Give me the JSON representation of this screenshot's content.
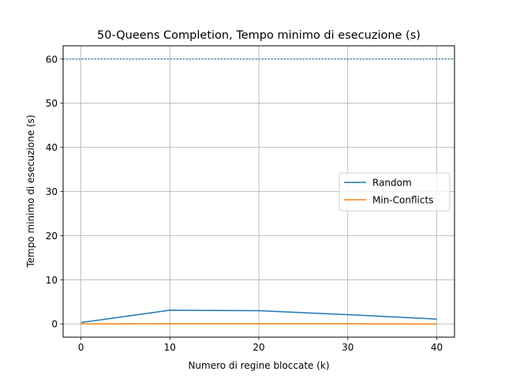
{
  "chart_data": {
    "type": "line",
    "title": "50-Queens Completion, Tempo minimo di esecuzione (s)",
    "xlabel": "Numero di regine bloccate (k)",
    "ylabel": "Tempo minimo di esecuzione (s)",
    "x": [
      0,
      10,
      20,
      30,
      40
    ],
    "xlim": [
      -2,
      42
    ],
    "ylim": [
      -3,
      63
    ],
    "xticks": [
      0,
      10,
      20,
      30,
      40
    ],
    "yticks": [
      0,
      10,
      20,
      30,
      40,
      50,
      60
    ],
    "grid": true,
    "legend_position": "center-right",
    "reference_line": {
      "y": 60,
      "style": "dotted",
      "color": "#1f77b4"
    },
    "series": [
      {
        "name": "Random",
        "color": "#1f77b4",
        "values": [
          0.3,
          3.1,
          3.0,
          2.1,
          1.1
        ]
      },
      {
        "name": "Min-Conflicts",
        "color": "#ff7f0e",
        "values": [
          0.0,
          0.05,
          0.05,
          0.05,
          -0.05
        ]
      }
    ]
  }
}
